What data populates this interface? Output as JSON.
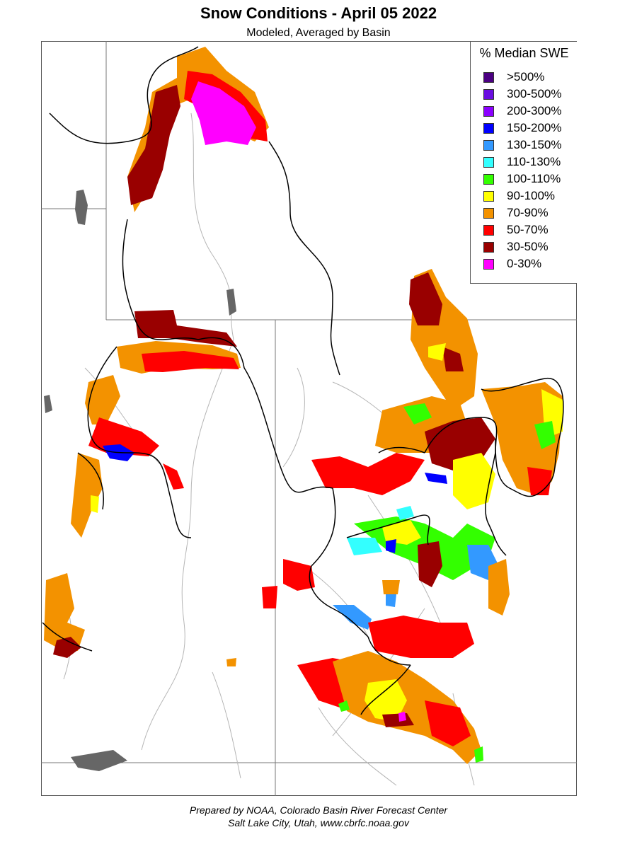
{
  "title": "Snow Conditions - April 05 2022",
  "subtitle": "Modeled, Averaged by Basin",
  "legend": {
    "title": "% Median SWE",
    "items": [
      {
        "label": ">500%",
        "color": "#4B0082"
      },
      {
        "label": "300-500%",
        "color": "#6A0DE0"
      },
      {
        "label": "200-300%",
        "color": "#8B00FF"
      },
      {
        "label": "150-200%",
        "color": "#0000FF"
      },
      {
        "label": "130-150%",
        "color": "#3399FF"
      },
      {
        "label": "110-130%",
        "color": "#33FFFF"
      },
      {
        "label": "100-110%",
        "color": "#33FF00"
      },
      {
        "label": "90-100%",
        "color": "#FFFF00"
      },
      {
        "label": "70-90%",
        "color": "#F39200"
      },
      {
        "label": "50-70%",
        "color": "#FF0000"
      },
      {
        "label": "30-50%",
        "color": "#990000"
      },
      {
        "label": "0-30%",
        "color": "#FF00FF"
      }
    ]
  },
  "credit": {
    "line1": "Prepared by NOAA, Colorado Basin River Forecast Center",
    "line2": "Salt Lake City, Utah, www.cbrfc.noaa.gov"
  }
}
